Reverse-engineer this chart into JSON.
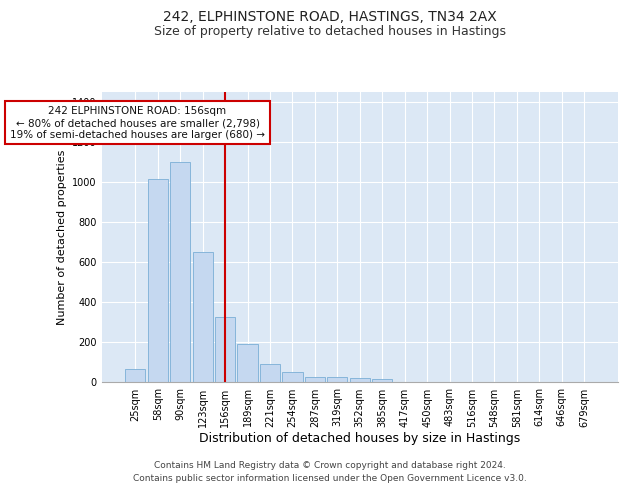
{
  "title": "242, ELPHINSTONE ROAD, HASTINGS, TN34 2AX",
  "subtitle": "Size of property relative to detached houses in Hastings",
  "xlabel": "Distribution of detached houses by size in Hastings",
  "ylabel": "Number of detached properties",
  "footer_line1": "Contains HM Land Registry data © Crown copyright and database right 2024.",
  "footer_line2": "Contains public sector information licensed under the Open Government Licence v3.0.",
  "categories": [
    "25sqm",
    "58sqm",
    "90sqm",
    "123sqm",
    "156sqm",
    "189sqm",
    "221sqm",
    "254sqm",
    "287sqm",
    "319sqm",
    "352sqm",
    "385sqm",
    "417sqm",
    "450sqm",
    "483sqm",
    "516sqm",
    "548sqm",
    "581sqm",
    "614sqm",
    "646sqm",
    "679sqm"
  ],
  "values": [
    65,
    1015,
    1100,
    650,
    325,
    190,
    90,
    48,
    25,
    25,
    20,
    15,
    0,
    0,
    0,
    0,
    0,
    0,
    0,
    0,
    0
  ],
  "bar_color": "#c5d8f0",
  "bar_edge_color": "#7aaed6",
  "vline_x_idx": 4,
  "vline_color": "#cc0000",
  "annotation_line1": "242 ELPHINSTONE ROAD: 156sqm",
  "annotation_line2": "← 80% of detached houses are smaller (2,798)",
  "annotation_line3": "19% of semi-detached houses are larger (680) →",
  "annotation_box_color": "#ffffff",
  "annotation_box_edge_color": "#cc0000",
  "ylim": [
    0,
    1450
  ],
  "yticks": [
    0,
    200,
    400,
    600,
    800,
    1000,
    1200,
    1400
  ],
  "plot_bg_color": "#dce8f5",
  "grid_color": "#ffffff",
  "title_fontsize": 10,
  "subtitle_fontsize": 9,
  "xlabel_fontsize": 9,
  "ylabel_fontsize": 8,
  "tick_fontsize": 7,
  "annotation_fontsize": 7.5,
  "footer_fontsize": 6.5
}
